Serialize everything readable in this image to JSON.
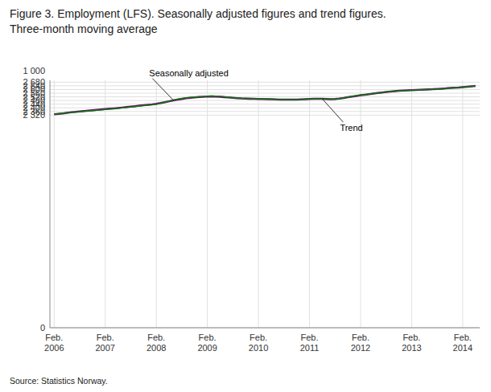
{
  "chart_data": {
    "type": "line",
    "title": "Figure 3. Employment (LFS). Seasonally adjusted figures and trend figures.\nThree-month moving average",
    "y_label": "1 000",
    "source": "Source: Statistics Norway.",
    "grid": true,
    "categories": [
      "Feb.\n2006",
      null,
      null,
      null,
      null,
      null,
      null,
      null,
      null,
      null,
      null,
      null,
      "Feb.\n2007",
      null,
      null,
      null,
      null,
      null,
      null,
      null,
      null,
      null,
      null,
      null,
      "Feb.\n2008",
      null,
      null,
      null,
      null,
      null,
      null,
      null,
      null,
      null,
      null,
      null,
      "Feb.\n2009",
      null,
      null,
      null,
      null,
      null,
      null,
      null,
      null,
      null,
      null,
      null,
      "Feb.\n2010",
      null,
      null,
      null,
      null,
      null,
      null,
      null,
      null,
      null,
      null,
      null,
      "Feb.\n2011",
      null,
      null,
      null,
      null,
      null,
      null,
      null,
      null,
      null,
      null,
      null,
      "Feb.\n2012",
      null,
      null,
      null,
      null,
      null,
      null,
      null,
      null,
      null,
      null,
      null,
      "Feb.\n2013",
      null,
      null,
      null,
      null,
      null,
      null,
      null,
      null,
      null,
      null,
      null,
      "Feb.\n2014",
      null,
      null,
      null
    ],
    "ylim": [
      0,
      2700
    ],
    "yticks": [
      0,
      {
        "value": 2320,
        "label": "2 320"
      },
      {
        "value": 2360,
        "label": "2 360"
      },
      {
        "value": 2400,
        "label": "2 400"
      },
      {
        "value": 2440,
        "label": "2 440"
      },
      {
        "value": 2480,
        "label": "2 480"
      },
      {
        "value": 2520,
        "label": "2 520"
      },
      {
        "value": 2560,
        "label": "2 560"
      },
      {
        "value": 2600,
        "label": "2 600"
      },
      {
        "value": 2640,
        "label": "2 640"
      },
      {
        "value": 2680,
        "label": "2 680"
      }
    ],
    "series": [
      {
        "name": "Trend",
        "color": "#800080",
        "values": [
          2330,
          2334,
          2339,
          2345,
          2351,
          2355,
          2360,
          2365,
          2370,
          2374,
          2378,
          2382,
          2386,
          2390,
          2394,
          2398,
          2403,
          2408,
          2413,
          2418,
          2423,
          2428,
          2433,
          2438,
          2444,
          2452,
          2461,
          2471,
          2480,
          2489,
          2497,
          2504,
          2510,
          2514,
          2518,
          2521,
          2523,
          2524,
          2523,
          2521,
          2517,
          2513,
          2509,
          2505,
          2502,
          2500,
          2499,
          2498,
          2497,
          2496,
          2494,
          2493,
          2491,
          2490,
          2489,
          2489,
          2489,
          2490,
          2492,
          2494,
          2496,
          2498,
          2499,
          2498,
          2496,
          2495,
          2496,
          2500,
          2507,
          2515,
          2523,
          2530,
          2537,
          2543,
          2549,
          2555,
          2561,
          2567,
          2572,
          2577,
          2581,
          2585,
          2588,
          2591,
          2593,
          2595,
          2597,
          2599,
          2601,
          2603,
          2606,
          2609,
          2612,
          2616,
          2619,
          2622,
          2626,
          2630,
          2634,
          2638
        ]
      },
      {
        "name": "Seasonally adjusted",
        "color": "#008000",
        "values": [
          2333,
          2336,
          2341,
          2347,
          2352,
          2354,
          2358,
          2362,
          2366,
          2370,
          2374,
          2378,
          2382,
          2386,
          2390,
          2395,
          2400,
          2405,
          2410,
          2415,
          2420,
          2425,
          2430,
          2434,
          2440,
          2450,
          2462,
          2474,
          2484,
          2494,
          2502,
          2508,
          2513,
          2517,
          2520,
          2522,
          2526,
          2528,
          2527,
          2524,
          2520,
          2515,
          2510,
          2506,
          2504,
          2503,
          2502,
          2501,
          2500,
          2498,
          2496,
          2494,
          2492,
          2490,
          2488,
          2487,
          2487,
          2488,
          2490,
          2493,
          2497,
          2499,
          2498,
          2496,
          2494,
          2493,
          2495,
          2500,
          2508,
          2516,
          2524,
          2531,
          2537,
          2543,
          2549,
          2555,
          2561,
          2567,
          2572,
          2577,
          2581,
          2584,
          2587,
          2590,
          2592,
          2594,
          2596,
          2598,
          2600,
          2602,
          2604,
          2607,
          2610,
          2614,
          2618,
          2622,
          2626,
          2630,
          2634,
          2638
        ]
      }
    ]
  }
}
